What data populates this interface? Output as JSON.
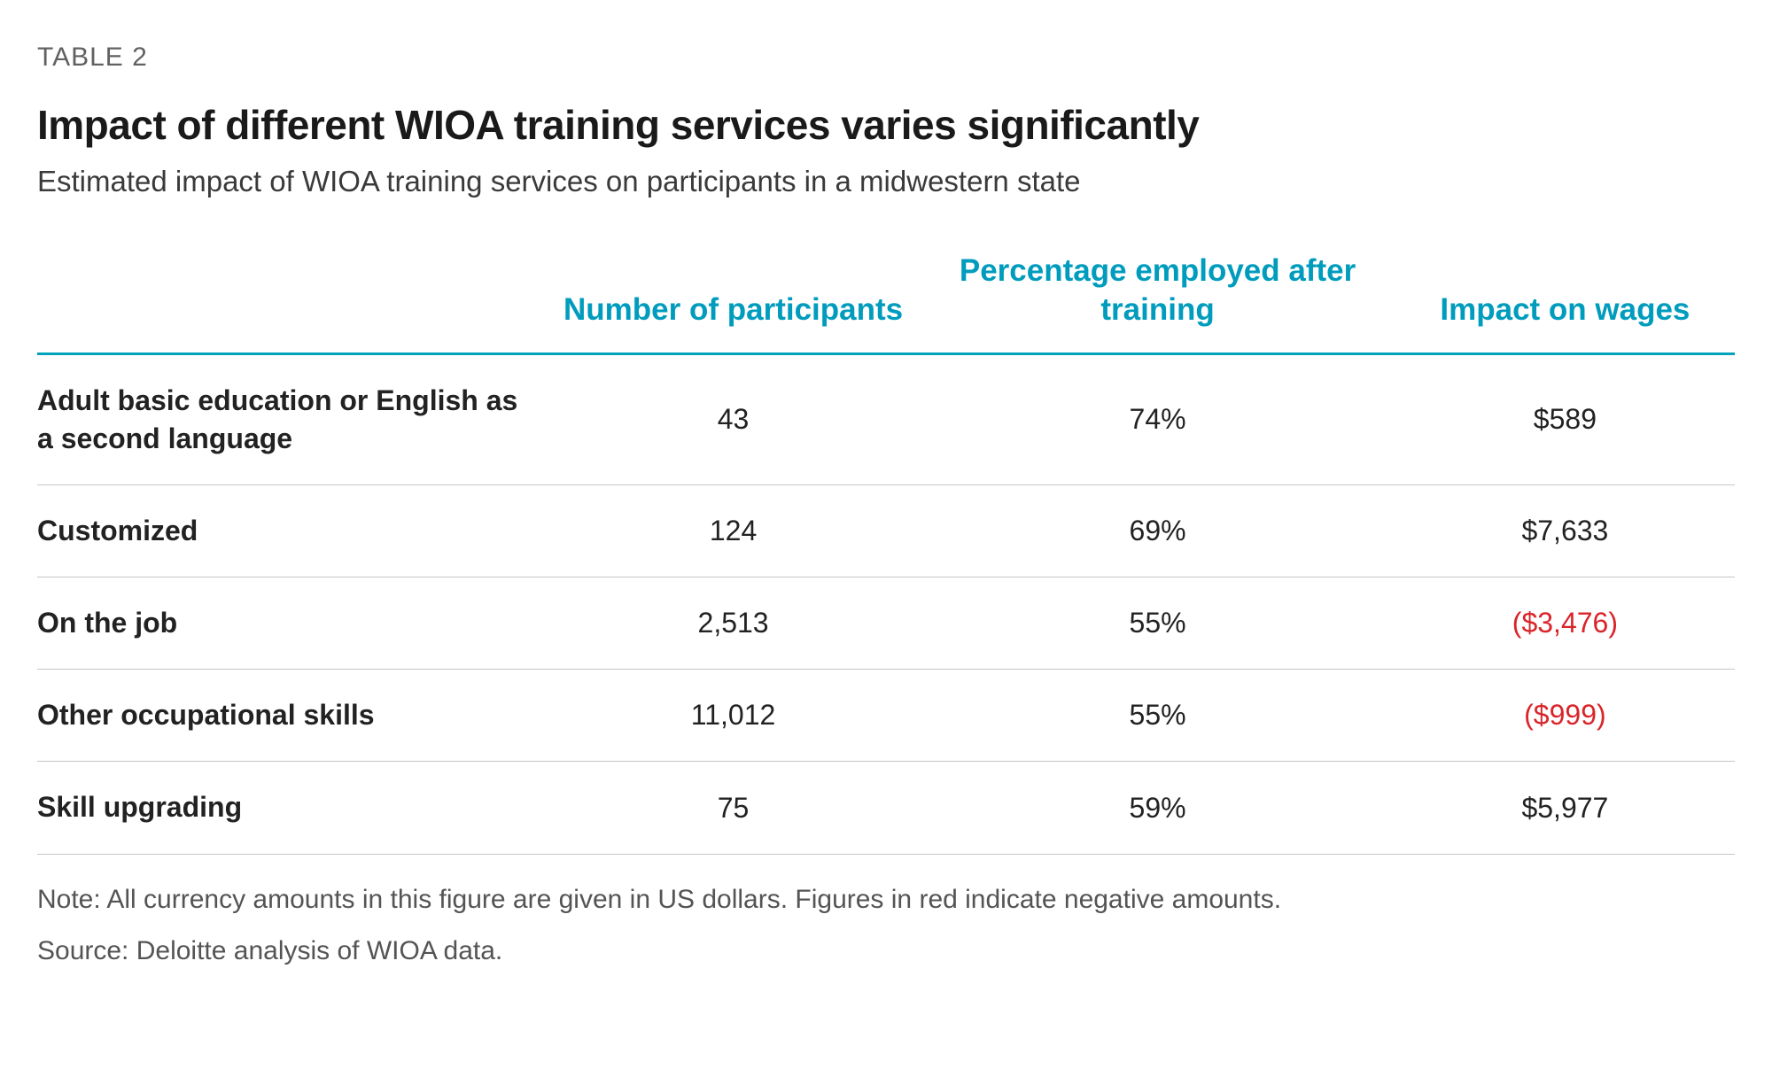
{
  "header": {
    "table_label": "TABLE 2",
    "title": "Impact of different WIOA training services varies significantly",
    "subtitle": "Estimated impact of WIOA training services on participants in a midwestern state"
  },
  "table": {
    "type": "table",
    "header_color": "#009cbd",
    "header_rule_color": "#00a3ba",
    "row_rule_color": "#c6c6c6",
    "background_color": "#ffffff",
    "negative_color": "#d9252a",
    "text_color": "#222222",
    "header_fontsize_pt": 26,
    "body_fontsize_pt": 24,
    "rowheader_fontweight": 700,
    "columns": [
      {
        "key": "label",
        "header": "",
        "align": "left",
        "width_pct": 30
      },
      {
        "key": "participants",
        "header": "Number of participants",
        "align": "center",
        "width_pct": 22
      },
      {
        "key": "employed_pct",
        "header": "Percentage employed after training",
        "align": "center",
        "width_pct": 28
      },
      {
        "key": "wage_impact",
        "header": "Impact on wages",
        "align": "center",
        "width_pct": 20
      }
    ],
    "rows": [
      {
        "label": "Adult basic education or English as a second language",
        "participants": "43",
        "employed_pct": "74%",
        "wage_impact": "$589",
        "wage_negative": false
      },
      {
        "label": "Customized",
        "participants": "124",
        "employed_pct": "69%",
        "wage_impact": "$7,633",
        "wage_negative": false
      },
      {
        "label": "On the job",
        "participants": "2,513",
        "employed_pct": "55%",
        "wage_impact": "($3,476)",
        "wage_negative": true
      },
      {
        "label": "Other occupational skills",
        "participants": "11,012",
        "employed_pct": "55%",
        "wage_impact": "($999)",
        "wage_negative": true
      },
      {
        "label": "Skill upgrading",
        "participants": "75",
        "employed_pct": "59%",
        "wage_impact": "$5,977",
        "wage_negative": false
      }
    ]
  },
  "footnotes": {
    "note": "Note: All currency amounts in this figure are given in US dollars. Figures in red indicate negative amounts.",
    "source": "Source: Deloitte analysis of WIOA data."
  }
}
